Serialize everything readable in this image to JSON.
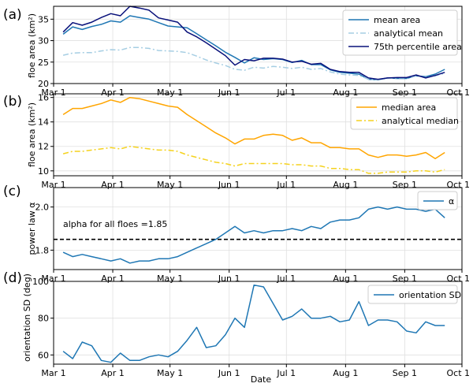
{
  "xaxis": {
    "label": "Date",
    "ticks": [
      {
        "label": "Mar 1",
        "day": 0
      },
      {
        "label": "Apr 1",
        "day": 31
      },
      {
        "label": "May 1",
        "day": 61
      },
      {
        "label": "Jun 1",
        "day": 92
      },
      {
        "label": "Jul 1",
        "day": 122
      },
      {
        "label": "Aug 1",
        "day": 153
      },
      {
        "label": "Sep 1",
        "day": 184
      },
      {
        "label": "Oct 1",
        "day": 214
      }
    ],
    "range": [
      0,
      214
    ]
  },
  "chart_data": [
    {
      "panel_label": "(a)",
      "type": "line",
      "ylabel": "floe area (km²)",
      "ylim": [
        20,
        38
      ],
      "yticks": [
        20,
        25,
        30,
        35
      ],
      "grid": true,
      "legend": "top-right",
      "series": [
        {
          "name": "mean area",
          "color": "#1f77b4",
          "dash": "solid",
          "width": 1.5,
          "x": [
            5,
            10,
            15,
            20,
            25,
            30,
            35,
            40,
            45,
            50,
            55,
            60,
            65,
            70,
            75,
            80,
            85,
            90,
            95,
            100,
            105,
            110,
            115,
            120,
            125,
            130,
            135,
            140,
            145,
            150,
            155,
            160,
            165,
            170,
            175,
            180,
            185,
            190,
            195,
            200,
            205
          ],
          "y": [
            31.5,
            33.2,
            32.6,
            33.3,
            33.8,
            34.6,
            34.3,
            35.8,
            35.4,
            35.0,
            34.2,
            33.4,
            33.2,
            33.0,
            31.6,
            30.2,
            28.8,
            27.3,
            26.1,
            24.8,
            26.0,
            25.6,
            25.8,
            25.6,
            24.9,
            25.4,
            24.4,
            24.4,
            23.2,
            22.6,
            22.4,
            22.2,
            21.0,
            20.9,
            21.3,
            21.2,
            21.2,
            21.8,
            21.6,
            22.2,
            23.3
          ]
        },
        {
          "name": "analytical mean",
          "color": "#a6cee3",
          "dash": "dashdot",
          "width": 1.5,
          "x": [
            5,
            10,
            15,
            20,
            25,
            30,
            35,
            40,
            45,
            50,
            55,
            60,
            65,
            70,
            75,
            80,
            85,
            90,
            95,
            100,
            105,
            110,
            115,
            120,
            125,
            130,
            135,
            140,
            145,
            150,
            155,
            160,
            165,
            170,
            175,
            180,
            185,
            190,
            195,
            200,
            205
          ],
          "y": [
            26.6,
            27.1,
            27.2,
            27.2,
            27.6,
            27.9,
            27.8,
            28.4,
            28.4,
            28.2,
            27.7,
            27.6,
            27.5,
            27.2,
            26.4,
            25.5,
            24.8,
            24.2,
            23.3,
            23.1,
            23.8,
            23.6,
            24.0,
            23.8,
            23.5,
            23.8,
            23.3,
            23.5,
            22.7,
            22.2,
            22.0,
            21.9,
            21.0,
            20.8,
            21.2,
            21.3,
            21.3,
            21.8,
            21.4,
            21.8,
            22.4
          ]
        },
        {
          "name": "75th percentile area",
          "color": "#08107a",
          "dash": "solid",
          "width": 1.5,
          "x": [
            5,
            10,
            15,
            20,
            25,
            30,
            35,
            40,
            45,
            50,
            55,
            60,
            65,
            70,
            75,
            80,
            85,
            90,
            95,
            100,
            105,
            110,
            115,
            120,
            125,
            130,
            135,
            140,
            145,
            150,
            155,
            160,
            165,
            170,
            175,
            180,
            185,
            190,
            195,
            200,
            205
          ],
          "y": [
            32.0,
            34.2,
            33.6,
            34.3,
            35.4,
            36.3,
            35.8,
            38.0,
            37.6,
            37.1,
            35.3,
            34.8,
            34.3,
            32.0,
            30.9,
            29.5,
            28.0,
            26.5,
            24.3,
            25.6,
            25.3,
            25.9,
            25.9,
            25.7,
            25.0,
            25.2,
            24.5,
            24.7,
            23.3,
            22.8,
            22.6,
            22.6,
            21.3,
            21.0,
            21.3,
            21.4,
            21.4,
            22.0,
            21.3,
            21.9,
            22.6
          ]
        }
      ]
    },
    {
      "panel_label": "(b)",
      "type": "line",
      "ylabel": "floe area (km²)",
      "ylim": [
        9.6,
        16.3
      ],
      "yticks": [
        10,
        12,
        14,
        16
      ],
      "grid": true,
      "legend": "top-right",
      "series": [
        {
          "name": "median area",
          "color": "#ffa500",
          "dash": "solid",
          "width": 1.5,
          "x": [
            5,
            10,
            15,
            20,
            25,
            30,
            35,
            40,
            45,
            50,
            55,
            60,
            65,
            70,
            75,
            80,
            85,
            90,
            95,
            100,
            105,
            110,
            115,
            120,
            125,
            130,
            135,
            140,
            145,
            150,
            155,
            160,
            165,
            170,
            175,
            180,
            185,
            190,
            195,
            200,
            205
          ],
          "y": [
            14.6,
            15.1,
            15.1,
            15.3,
            15.5,
            15.8,
            15.6,
            16.0,
            15.9,
            15.7,
            15.5,
            15.3,
            15.2,
            14.6,
            14.1,
            13.6,
            13.1,
            12.7,
            12.2,
            12.6,
            12.6,
            12.9,
            13.0,
            12.9,
            12.5,
            12.7,
            12.3,
            12.3,
            11.9,
            11.9,
            11.8,
            11.8,
            11.3,
            11.1,
            11.3,
            11.3,
            11.2,
            11.3,
            11.5,
            11.0,
            11.5
          ]
        },
        {
          "name": "analytical median",
          "color": "#f5d21e",
          "dash": "dashdot",
          "width": 1.5,
          "x": [
            5,
            10,
            15,
            20,
            25,
            30,
            35,
            40,
            45,
            50,
            55,
            60,
            65,
            70,
            75,
            80,
            85,
            90,
            95,
            100,
            105,
            110,
            115,
            120,
            125,
            130,
            135,
            140,
            145,
            150,
            155,
            160,
            165,
            170,
            175,
            180,
            185,
            190,
            195,
            200,
            205
          ],
          "y": [
            11.4,
            11.6,
            11.6,
            11.7,
            11.8,
            11.9,
            11.8,
            12.0,
            11.9,
            11.8,
            11.7,
            11.7,
            11.6,
            11.3,
            11.1,
            10.9,
            10.7,
            10.6,
            10.4,
            10.6,
            10.6,
            10.6,
            10.6,
            10.6,
            10.5,
            10.5,
            10.4,
            10.4,
            10.2,
            10.2,
            10.1,
            10.1,
            9.8,
            9.8,
            9.9,
            9.9,
            9.9,
            10.0,
            10.0,
            9.9,
            10.1
          ]
        }
      ]
    },
    {
      "panel_label": "(c)",
      "type": "line",
      "ylabel": "power law α",
      "ylim": [
        1.71,
        2.09
      ],
      "yticks": [
        1.8,
        2.0
      ],
      "grid": true,
      "legend": "top-right",
      "annotation": "alpha for all floes =1.85",
      "hline": {
        "y": 1.85,
        "color": "#000000",
        "dash": "dashed"
      },
      "series": [
        {
          "name": "α",
          "color": "#1f77b4",
          "dash": "solid",
          "width": 1.5,
          "x": [
            5,
            10,
            15,
            20,
            25,
            30,
            35,
            40,
            45,
            50,
            55,
            60,
            65,
            70,
            75,
            80,
            85,
            90,
            95,
            100,
            105,
            110,
            115,
            120,
            125,
            130,
            135,
            140,
            145,
            150,
            155,
            160,
            165,
            170,
            175,
            180,
            185,
            190,
            195,
            200,
            205
          ],
          "y": [
            1.79,
            1.77,
            1.78,
            1.77,
            1.76,
            1.75,
            1.76,
            1.74,
            1.75,
            1.75,
            1.76,
            1.76,
            1.77,
            1.79,
            1.81,
            1.83,
            1.85,
            1.88,
            1.91,
            1.88,
            1.89,
            1.88,
            1.89,
            1.89,
            1.9,
            1.89,
            1.91,
            1.9,
            1.93,
            1.94,
            1.94,
            1.95,
            1.99,
            2.0,
            1.99,
            2.0,
            1.99,
            1.99,
            1.98,
            1.99,
            1.95
          ]
        }
      ]
    },
    {
      "panel_label": "(d)",
      "type": "line",
      "xlabel": "Date",
      "ylabel": "orientation SD (deg)",
      "ylim": [
        55,
        100
      ],
      "yticks": [
        60,
        80,
        100
      ],
      "grid": true,
      "legend": "top-right",
      "series": [
        {
          "name": "orientation SD",
          "color": "#1f77b4",
          "dash": "solid",
          "width": 1.5,
          "x": [
            5,
            10,
            15,
            20,
            25,
            30,
            35,
            40,
            45,
            50,
            55,
            60,
            65,
            70,
            75,
            80,
            85,
            90,
            95,
            100,
            105,
            110,
            115,
            120,
            125,
            130,
            135,
            140,
            145,
            150,
            155,
            160,
            165,
            170,
            175,
            180,
            185,
            190,
            195,
            200,
            205
          ],
          "y": [
            62,
            58,
            67,
            65,
            57,
            56,
            61,
            57,
            57,
            59,
            60,
            59,
            62,
            68,
            75,
            64,
            65,
            71,
            80,
            75,
            98,
            97,
            88,
            79,
            81,
            85,
            80,
            80,
            81,
            78,
            79,
            89,
            76,
            79,
            79,
            78,
            73,
            72,
            78,
            76,
            76
          ]
        }
      ]
    }
  ]
}
